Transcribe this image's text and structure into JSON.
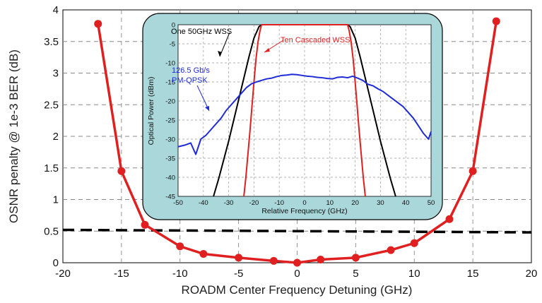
{
  "chart_data": [
    {
      "type": "line",
      "xlabel": "ROADM Center Frequency Detuning (GHz)",
      "ylabel": "OSNR penalty @ 1e-3 BER (dB)",
      "xlim": [
        -20,
        20
      ],
      "ylim": [
        0,
        4
      ],
      "xticks": [
        "-20",
        "-15",
        "-10",
        "-5",
        "0",
        "5",
        "10",
        "15",
        "20"
      ],
      "yticks": [
        "0",
        "0.5",
        "1",
        "1.5",
        "2",
        "2.5",
        "3",
        "3.5",
        "4"
      ],
      "grid": true,
      "series": [
        {
          "color": "#e02020",
          "style": "solid-with-markers",
          "x": [
            -17,
            -15,
            -13,
            -10,
            -8,
            -5,
            -2,
            0,
            2,
            5,
            8,
            10,
            13,
            15,
            17
          ],
          "y": [
            3.78,
            1.45,
            0.6,
            0.26,
            0.14,
            0.08,
            0.03,
            0.0,
            0.05,
            0.08,
            0.2,
            0.31,
            0.69,
            1.45,
            3.82
          ]
        },
        {
          "color": "#000000",
          "style": "dashed",
          "x": [
            -20,
            20
          ],
          "y": [
            0.52,
            0.48
          ]
        }
      ]
    },
    {
      "type": "line",
      "xlabel": "Relative Frequency (GHz)",
      "ylabel": "Optical Power (dBm)",
      "xlim": [
        -50,
        50
      ],
      "ylim": [
        -45,
        0
      ],
      "xticks": [
        "-50",
        "-40",
        "-30",
        "-20",
        "-10",
        "0",
        "10",
        "20",
        "30",
        "40",
        "50"
      ],
      "yticks": [
        "-45",
        "-40",
        "-35",
        "-30",
        "-25",
        "-20",
        "-15",
        "-10",
        "-5",
        "0"
      ],
      "grid": true,
      "annotations": [
        "One 50GHz WSS",
        "Ten Cascaded WSS",
        "126.5 Gb/s",
        "PM-QPSK"
      ],
      "series": [
        {
          "name": "One 50GHz WSS",
          "color": "#000000",
          "x": [
            -36,
            -34,
            -32,
            -30,
            -28,
            -26,
            -24,
            -22,
            -20,
            -18,
            -17,
            17,
            18,
            20,
            22,
            24,
            26,
            28,
            30,
            32,
            34,
            36
          ],
          "y": [
            -45,
            -40.5,
            -35.5,
            -30.5,
            -25,
            -19.5,
            -14,
            -8.5,
            -3.5,
            -0.5,
            0,
            0,
            -0.5,
            -3.5,
            -8.5,
            -14,
            -19.5,
            -25,
            -30.5,
            -35.5,
            -40.5,
            -45
          ]
        },
        {
          "name": "Ten Cascaded WSS",
          "color": "#e02020",
          "x": [
            -24,
            -23.2,
            -22.4,
            -21.6,
            -20.8,
            -20,
            -19.2,
            -18.4,
            -17.6,
            -17,
            17,
            17.6,
            18.4,
            19.2,
            20,
            20.8,
            21.6,
            22.4,
            23.2,
            24
          ],
          "y": [
            -45,
            -40,
            -34,
            -28,
            -21.5,
            -15,
            -9,
            -4.5,
            -1.5,
            0,
            0,
            -1.5,
            -4.5,
            -9,
            -15,
            -21.5,
            -28,
            -34,
            -40,
            -45
          ]
        },
        {
          "name": "126.5 Gb/s PM-QPSK",
          "color": "#1f2bd6",
          "x": [
            -50,
            -47,
            -45,
            -43,
            -41,
            -39,
            -37,
            -35,
            -33,
            -31,
            -29,
            -27,
            -25,
            -23,
            -21,
            -19,
            -17,
            -15,
            -13,
            -11,
            -9,
            -7,
            -5,
            -3,
            -1,
            1,
            3,
            5,
            7,
            9,
            11,
            13,
            15,
            17,
            19,
            21,
            23,
            25,
            27,
            29,
            31,
            33,
            35,
            37,
            39,
            41,
            43,
            45,
            47,
            49,
            50
          ],
          "y": [
            -32,
            -31.5,
            -31,
            -34,
            -30,
            -29,
            -27.5,
            -26,
            -24.5,
            -22.5,
            -21,
            -19.5,
            -18,
            -16.5,
            -15.5,
            -15,
            -14.6,
            -14.2,
            -14,
            -13.6,
            -13.3,
            -13.2,
            -13,
            -13.1,
            -13.3,
            -13.5,
            -13.6,
            -13.8,
            -13.9,
            -14.1,
            -14.2,
            -13.8,
            -13.7,
            -13.9,
            -13.5,
            -14,
            -14.6,
            -15.6,
            -16,
            -16.8,
            -17.5,
            -18.5,
            -19.5,
            -20.5,
            -21.5,
            -23,
            -24.5,
            -26.5,
            -28.5,
            -30,
            -28
          ]
        }
      ]
    }
  ]
}
